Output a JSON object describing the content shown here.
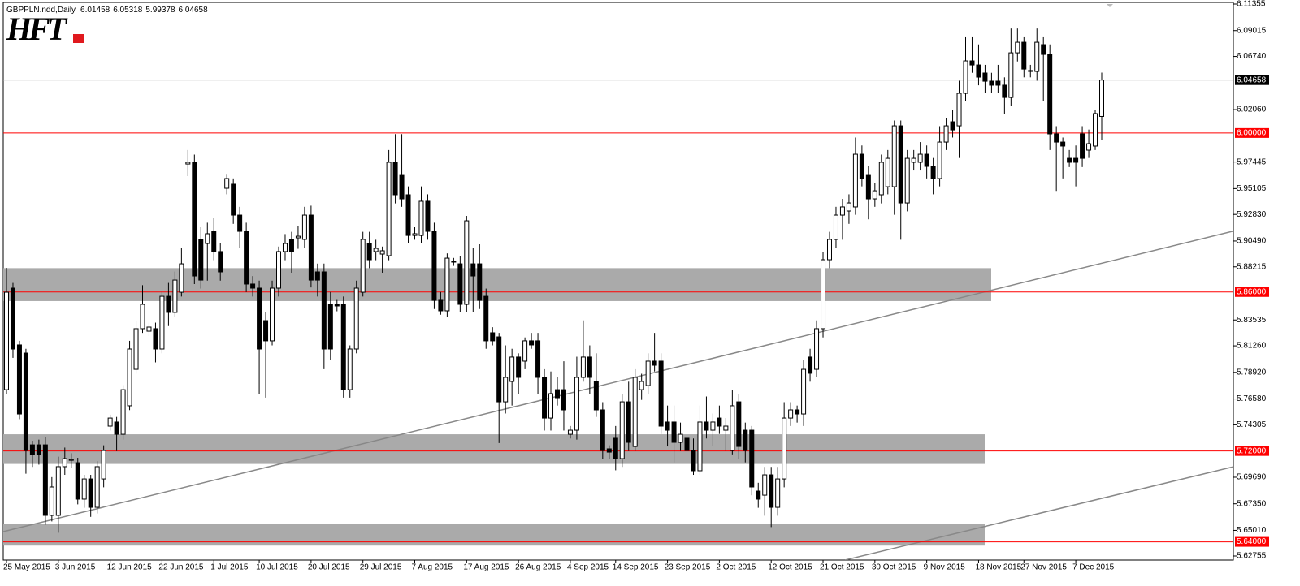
{
  "chart_data": {
    "type": "candlestick",
    "symbol": "GBPPLN.ndd,Daily",
    "logo": "HFT",
    "ylim": [
      5.62755,
      6.11355
    ],
    "yticks": [
      6.11355,
      6.09015,
      {
        "value": 6.0674,
        "label": "6.06740"
      },
      {
        "value": 6.0206,
        "label": "6.02060"
      },
      5.97445,
      5.95105,
      {
        "value": 5.9283,
        "label": "5.92830"
      },
      {
        "value": 5.9049,
        "label": "5.90490"
      },
      5.88215,
      5.83535,
      {
        "value": 5.8126,
        "label": "5.81260"
      },
      {
        "value": 5.7892,
        "label": "5.78920"
      },
      {
        "value": 5.7658,
        "label": "5.76580"
      },
      5.74305,
      {
        "value": 5.6969,
        "label": "5.69690"
      },
      {
        "value": 5.6735,
        "label": "5.67350"
      },
      {
        "value": 5.6501,
        "label": "5.65010"
      },
      5.62755
    ],
    "levels": [
      {
        "value": 6,
        "label": "6.00000"
      },
      {
        "value": 5.86,
        "label": "5.86000"
      },
      {
        "value": 5.72,
        "label": "5.72000"
      },
      {
        "value": 5.64,
        "label": "5.64000"
      }
    ],
    "level_color": "#ff0000",
    "zones": [
      {
        "low": 5.852,
        "high": 5.881
      },
      {
        "low": 5.7086,
        "high": 5.7347
      },
      {
        "low": 5.6367,
        "high": 5.6561
      }
    ],
    "zone_color": "#aaaaaa",
    "trendlines": [
      {
        "start": 5.649,
        "end": 5.9136
      },
      {
        "start": 5.624,
        "end": 5.7061
      }
    ],
    "trendline_color": "#888888",
    "up_color": "#ffffff",
    "down_color": "#000000",
    "categories": [
      "25 May 2015",
      null,
      null,
      null,
      null,
      null,
      null,
      null,
      "3 Jun 2015",
      null,
      null,
      null,
      null,
      null,
      null,
      null,
      "12 Jun 2015",
      null,
      null,
      null,
      null,
      null,
      null,
      null,
      "22 Jun 2015",
      null,
      null,
      null,
      null,
      null,
      null,
      null,
      "1 Jul 2015",
      null,
      null,
      null,
      null,
      null,
      null,
      "10 Jul 2015",
      null,
      null,
      null,
      null,
      null,
      null,
      null,
      "20 Jul 2015",
      null,
      null,
      null,
      null,
      null,
      null,
      null,
      "29 Jul 2015",
      null,
      null,
      null,
      null,
      null,
      null,
      null,
      "7 Aug 2015",
      null,
      null,
      null,
      null,
      null,
      null,
      null,
      "17 Aug 2015",
      null,
      null,
      null,
      null,
      null,
      null,
      null,
      "26 Aug 2015",
      null,
      null,
      null,
      null,
      null,
      null,
      null,
      "4 Sep 2015",
      null,
      null,
      null,
      null,
      null,
      null,
      "14 Sep 2015",
      null,
      null,
      null,
      null,
      null,
      null,
      null,
      "23 Sep 2015",
      null,
      null,
      null,
      null,
      null,
      null,
      null,
      "2 Oct 2015",
      null,
      null,
      null,
      null,
      null,
      null,
      null,
      "12 Oct 2015",
      null,
      null,
      null,
      null,
      null,
      null,
      null,
      "21 Oct 2015",
      null,
      null,
      null,
      null,
      null,
      null,
      null,
      "30 Oct 2015",
      null,
      null,
      null,
      null,
      null,
      null,
      null,
      "9 Nov 2015",
      null,
      null,
      null,
      null,
      null,
      null,
      null,
      "18 Nov 2015",
      null,
      null,
      null,
      null,
      null,
      null,
      "27 Nov 2015",
      null,
      null,
      null,
      null,
      null,
      null,
      null,
      "7 Dec 2015",
      null,
      null,
      null,
      null
    ],
    "open": [
      5.774,
      5.8634,
      5.8134,
      5.8062,
      5.7254,
      5.7254,
      5.7254,
      5.6633,
      5.6633,
      5.7062,
      5.7118,
      5.7097,
      5.6776,
      5.6954,
      5.6704,
      5.6954,
      5.7419,
      5.7455,
      5.7347,
      5.7598,
      5.7919,
      5.8277,
      5.8255,
      5.8277,
      5.8098,
      5.8562,
      5.842,
      5.8598,
      5.9727,
      5.9742,
      5.9063,
      5.9027,
      5.9134,
      5.8956,
      5.9513,
      5.9549,
      5.9277,
      5.9134,
      5.867,
      5.8634,
      5.8348,
      5.817,
      5.8634,
      5.8956,
      5.9063,
      5.9077,
      5.9063,
      5.9277,
      5.8777,
      5.8777,
      5.8491,
      5.8491,
      5.8491,
      5.774,
      5.8098,
      5.8598,
      5.9027,
      5.8956,
      5.8934,
      5.892,
      5.9742,
      5.9634,
      5.9456,
      5.9098,
      5.9098,
      5.9399,
      5.9134,
      5.8527,
      5.8434,
      5.8863,
      5.8848,
      5.8491,
      5.8848,
      5.8848,
      5.8562,
      5.8241,
      5.8205,
      5.7633,
      5.7812,
      5.8027,
      5.7991,
      5.817,
      5.817,
      5.7848,
      5.749,
      5.774,
      5.774,
      5.7347,
      5.7383,
      5.7848,
      5.8027,
      5.7812,
      5.7562,
      5.7219,
      5.7312,
      5.7133,
      5.7633,
      5.724,
      5.774,
      5.7776,
      5.7991,
      5.7991,
      5.7455,
      5.7455,
      5.7276,
      5.7312,
      5.7204,
      5.7026,
      5.7455,
      5.7383,
      5.749,
      5.7383,
      5.7204,
      5.7633,
      5.7383,
      5.7383,
      5.6847,
      5.6811,
      5.699,
      5.6704,
      5.6954,
      5.749,
      5.7562,
      5.7526,
      5.8027,
      5.7919,
      5.8277,
      5.8884,
      5.9063,
      5.9277,
      5.9313,
      5.9349,
      5.9813,
      5.9634,
      5.942,
      5.9456,
      5.9527,
      5.9527,
      6.0063,
      5.9384,
      5.9742,
      5.9742,
      5.9813,
      5.9706,
      5.9599,
      5.992,
      6.0099,
      6.0063,
      6.0349,
      6.0635,
      6.0599,
      6.0528,
      6.0456,
      6.0456,
      6.0421,
      6.0313,
      6.0706,
      6.0799,
      6.0542,
      6.0542,
      6.0778,
      6.0692,
      5.9992,
      5.992,
      5.9777,
      5.9777,
      5.9992,
      5.9849,
      5.9885,
      6.01458
    ],
    "high": [
      5.8813,
      5.868,
      5.817,
      5.81,
      5.729,
      5.73,
      5.732,
      5.697,
      5.715,
      5.723,
      5.718,
      5.714,
      5.699,
      5.699,
      5.711,
      5.725,
      5.752,
      5.75,
      5.778,
      5.817,
      5.835,
      5.866,
      5.833,
      5.833,
      5.86,
      5.868,
      5.878,
      5.899,
      5.985,
      5.981,
      5.917,
      5.921,
      5.925,
      5.903,
      5.964,
      5.96,
      5.935,
      5.921,
      5.874,
      5.87,
      5.842,
      5.87,
      5.9,
      5.911,
      5.913,
      5.918,
      5.935,
      5.936,
      5.885,
      5.885,
      5.86,
      5.853,
      5.856,
      5.813,
      5.87,
      5.913,
      5.913,
      5.906,
      5.9,
      5.985,
      5.999,
      5.999,
      5.953,
      5.917,
      5.953,
      5.946,
      5.921,
      5.86,
      5.894,
      5.89,
      5.892,
      5.927,
      5.899,
      5.902,
      5.863,
      5.829,
      5.824,
      5.813,
      5.81,
      5.806,
      5.82,
      5.824,
      5.824,
      5.792,
      5.79,
      5.785,
      5.799,
      5.742,
      5.803,
      5.835,
      5.813,
      5.806,
      5.763,
      5.725,
      5.742,
      5.77,
      5.781,
      5.792,
      5.788,
      5.806,
      5.824,
      5.806,
      5.76,
      5.76,
      5.745,
      5.76,
      5.731,
      5.76,
      5.768,
      5.753,
      5.76,
      5.749,
      5.774,
      5.77,
      5.745,
      5.742,
      5.692,
      5.706,
      5.706,
      5.706,
      5.763,
      5.763,
      5.76,
      5.8,
      5.81,
      5.835,
      5.895,
      5.913,
      5.935,
      5.942,
      5.946,
      5.996,
      5.989,
      5.971,
      5.956,
      5.981,
      5.985,
      6.011,
      6.011,
      5.985,
      5.985,
      5.992,
      5.989,
      5.978,
      6.006,
      6.013,
      6.02,
      6.046,
      6.085,
      6.085,
      6.078,
      6.06,
      6.053,
      6.06,
      6.049,
      6.092,
      6.092,
      6.085,
      6.06,
      6.092,
      6.085,
      6.078,
      6.006,
      5.996,
      5.985,
      5.989,
      6.006,
      6.003,
      6.02,
      6.05318
    ],
    "low": [
      5.7705,
      5.802,
      5.748,
      5.7,
      5.706,
      5.708,
      5.655,
      5.658,
      5.648,
      5.699,
      5.705,
      5.673,
      5.67,
      5.662,
      5.665,
      5.688,
      5.738,
      5.72,
      5.73,
      5.756,
      5.788,
      5.824,
      5.821,
      5.798,
      5.806,
      5.83,
      5.838,
      5.856,
      5.962,
      5.867,
      5.863,
      5.87,
      5.888,
      5.87,
      5.946,
      5.92,
      5.899,
      5.86,
      5.856,
      5.77,
      5.767,
      5.813,
      5.856,
      5.888,
      5.877,
      5.898,
      5.899,
      5.864,
      5.856,
      5.792,
      5.8,
      5.843,
      5.767,
      5.767,
      5.806,
      5.856,
      5.881,
      5.888,
      5.877,
      5.888,
      5.938,
      5.935,
      5.903,
      5.906,
      5.903,
      5.906,
      5.845,
      5.84,
      5.838,
      5.883,
      5.842,
      5.842,
      5.842,
      5.845,
      5.81,
      5.813,
      5.727,
      5.753,
      5.76,
      5.77,
      5.792,
      5.81,
      5.77,
      5.738,
      5.738,
      5.76,
      5.738,
      5.731,
      5.73,
      5.781,
      5.77,
      5.75,
      5.713,
      5.713,
      5.703,
      5.706,
      5.72,
      5.72,
      5.765,
      5.77,
      5.79,
      5.735,
      5.724,
      5.71,
      5.72,
      5.713,
      5.699,
      5.699,
      5.731,
      5.724,
      5.735,
      5.72,
      5.717,
      5.713,
      5.71,
      5.681,
      5.67,
      5.663,
      5.653,
      5.663,
      5.688,
      5.742,
      5.745,
      5.742,
      5.781,
      5.785,
      5.82,
      5.881,
      5.899,
      5.906,
      5.92,
      5.928,
      5.953,
      5.924,
      5.935,
      5.938,
      5.946,
      5.928,
      5.906,
      5.931,
      5.967,
      5.967,
      5.96,
      5.946,
      5.953,
      5.985,
      5.996,
      5.978,
      6.028,
      6.053,
      6.042,
      6.035,
      6.035,
      6.035,
      6.017,
      6.024,
      6.063,
      6.049,
      6.049,
      6.046,
      6.028,
      5.985,
      5.949,
      5.96,
      5.97,
      5.953,
      5.97,
      5.978,
      5.985,
      5.99378
    ],
    "close": [
      5.8598,
      5.8098,
      5.7526,
      5.7204,
      5.7169,
      5.7169,
      5.6633,
      5.6883,
      5.7062,
      5.7133,
      5.7126,
      5.6776,
      5.6954,
      5.6704,
      5.7062,
      5.7204,
      5.749,
      5.7347,
      5.774,
      5.8098,
      5.8277,
      5.8491,
      5.8291,
      5.8098,
      5.8562,
      5.842,
      5.8705,
      5.8848,
      5.9742,
      5.8741,
      5.8705,
      5.9113,
      5.8956,
      5.8777,
      5.9599,
      5.9277,
      5.9134,
      5.867,
      5.8634,
      5.8098,
      5.817,
      5.8634,
      5.8956,
      5.9027,
      5.8956,
      5.9091,
      5.9277,
      5.8705,
      5.8705,
      5.8098,
      5.8098,
      5.8477,
      5.774,
      5.8098,
      5.8634,
      5.9063,
      5.8884,
      5.8984,
      5.8963,
      5.9742,
      5.9456,
      5.942,
      5.9098,
      5.9113,
      5.9399,
      5.9134,
      5.8527,
      5.8434,
      5.8898,
      5.887,
      5.8491,
      5.9227,
      5.8741,
      5.8527,
      5.817,
      5.817,
      5.7633,
      5.7848,
      5.8027,
      5.7848,
      5.817,
      5.8134,
      5.7848,
      5.749,
      5.7705,
      5.7669,
      5.7562,
      5.7383,
      5.7848,
      5.8027,
      5.7848,
      5.7562,
      5.7204,
      5.719,
      5.7133,
      5.7633,
      5.7276,
      5.7848,
      5.7812,
      5.7991,
      5.7955,
      5.7419,
      5.7383,
      5.7276,
      5.7347,
      5.7204,
      5.7026,
      5.7455,
      5.7383,
      5.7455,
      5.7419,
      5.7419,
      5.7598,
      5.724,
      5.7204,
      5.6883,
      5.6776,
      5.699,
      5.6704,
      5.6954,
      5.749,
      5.7562,
      5.7526,
      5.7919,
      5.7884,
      5.8277,
      5.8884,
      5.9063,
      5.9277,
      5.9349,
      5.9384,
      5.9813,
      5.9599,
      5.942,
      5.9491,
      5.9742,
      5.9777,
      6.0063,
      5.9384,
      5.9777,
      5.9777,
      5.9813,
      5.9706,
      5.9599,
      5.992,
      6.0063,
      6.0027,
      6.0349,
      6.0635,
      6.0599,
      6.0492,
      6.0456,
      6.0421,
      6.0421,
      6.0313,
      6.0706,
      6.0799,
      6.0563,
      6.055,
      6.0799,
      6.0692,
      5.9992,
      5.992,
      5.9885,
      5.9742,
      5.9742,
      5.9777,
      5.9906,
      6.0171,
      6.04658
    ]
  }
}
